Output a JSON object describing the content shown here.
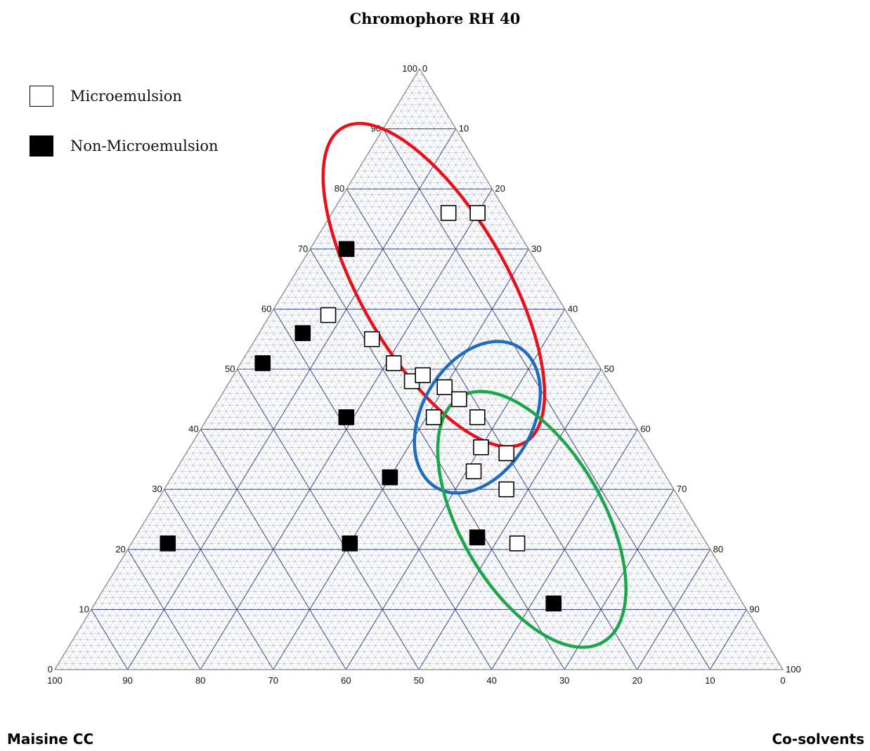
{
  "chart_data": {
    "type": "scatter",
    "subtype": "ternary",
    "title": "Chromophore RH 40",
    "axes": {
      "top": "Chromophore RH 40",
      "left": "Maisine CC",
      "right": "Co-solvents",
      "range": [
        0,
        100
      ],
      "ticks": [
        "0",
        "10",
        "20",
        "30",
        "40",
        "50",
        "60",
        "70",
        "80",
        "90",
        "100"
      ]
    },
    "grid": true,
    "legend": {
      "placement": "top-left",
      "entries": [
        {
          "label": "Microemulsion",
          "fill": "#ffffff"
        },
        {
          "label": "Non-Microemulsion",
          "fill": "#000000"
        }
      ]
    },
    "series": [
      {
        "name": "Microemulsion",
        "points": [
          {
            "a": 76,
            "c": 16
          },
          {
            "a": 76,
            "c": 20
          },
          {
            "a": 59,
            "c": 8
          },
          {
            "a": 55,
            "c": 16
          },
          {
            "a": 51,
            "c": 21
          },
          {
            "a": 48,
            "c": 25
          },
          {
            "a": 49,
            "c": 26
          },
          {
            "a": 47,
            "c": 30
          },
          {
            "a": 45,
            "c": 33
          },
          {
            "a": 42,
            "c": 37
          },
          {
            "a": 42,
            "c": 31
          },
          {
            "a": 37,
            "c": 40
          },
          {
            "a": 36,
            "c": 44
          },
          {
            "a": 33,
            "c": 41
          },
          {
            "a": 30,
            "c": 47
          },
          {
            "a": 21,
            "c": 53
          }
        ]
      },
      {
        "name": "Non-Microemulsion",
        "points": [
          {
            "a": 70,
            "c": 5
          },
          {
            "a": 56,
            "c": 6
          },
          {
            "a": 51,
            "c": 3
          },
          {
            "a": 42,
            "c": 19
          },
          {
            "a": 32,
            "c": 30
          },
          {
            "a": 21,
            "c": 5
          },
          {
            "a": 21,
            "c": 30
          },
          {
            "a": 22,
            "c": 47
          },
          {
            "a": 11,
            "c": 63
          }
        ]
      }
    ],
    "regions": [
      {
        "color": "#e8101a",
        "center": {
          "a": 64,
          "c": 20
        },
        "rx_units": 10,
        "ry_units": 25,
        "angle": -30
      },
      {
        "color": "#1f6bbd",
        "center": {
          "a": 42,
          "c": 37
        },
        "rx_units": 7.6,
        "ry_units": 11.2,
        "angle": 30
      },
      {
        "color": "#1ba64a",
        "center": {
          "a": 25,
          "c": 53
        },
        "rx_units": 9.8,
        "ry_units": 19.5,
        "angle": -30
      }
    ],
    "colors": {
      "grid": "#3a4a8a",
      "frame": "#888888"
    }
  }
}
